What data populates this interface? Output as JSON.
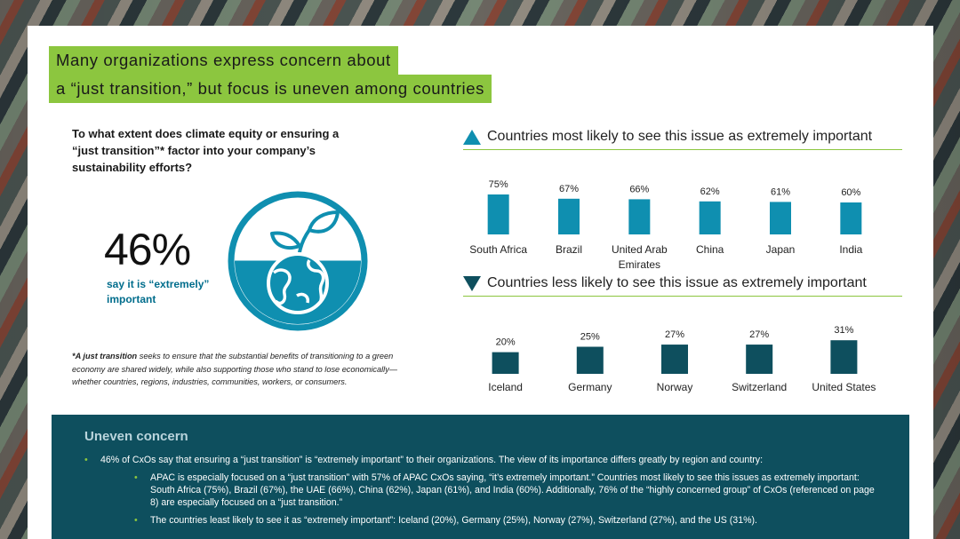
{
  "title": {
    "line1": "Many organizations express concern about",
    "line2": "a “just transition,” but focus is uneven among countries"
  },
  "question": "To what extent does climate equity or ensuring a “just transition”* factor into your company’s sustainability efforts?",
  "headline_stat": {
    "value": "46%",
    "label": "say it is “extremely” important"
  },
  "icon": "globe-plant-icon",
  "footnote": {
    "lead": "*A just transition",
    "text": " seeks to ensure that the substantial benefits of transitioning to a green economy are shared widely, while also supporting those who stand to lose economically—whether countries, regions, industries, communities, workers, or consumers."
  },
  "colors": {
    "accent_green": "#8cc63f",
    "teal_light": "#0f8fb0",
    "teal_dark": "#0e4f5e"
  },
  "chart_data": [
    {
      "type": "bar",
      "title": "Countries most likely to see this issue as extremely important",
      "marker": "up-triangle-icon",
      "categories": [
        "South Africa",
        "Brazil",
        "United Arab Emirates",
        "China",
        "Japan",
        "India"
      ],
      "category_lines": [
        [
          "South Africa"
        ],
        [
          "Brazil"
        ],
        [
          "United Arab",
          "Emirates"
        ],
        [
          "China"
        ],
        [
          "Japan"
        ],
        [
          "India"
        ]
      ],
      "values": [
        75,
        67,
        66,
        62,
        61,
        60
      ],
      "value_labels": [
        "75%",
        "67%",
        "66%",
        "62%",
        "61%",
        "60%"
      ],
      "ylim": [
        0,
        100
      ],
      "grid": false,
      "color": "#0f8fb0"
    },
    {
      "type": "bar",
      "title": "Countries less likely to see this issue as extremely important",
      "marker": "down-triangle-icon",
      "categories": [
        "Iceland",
        "Germany",
        "Norway",
        "Switzerland",
        "United States"
      ],
      "category_lines": [
        [
          "Iceland"
        ],
        [
          "Germany"
        ],
        [
          "Norway"
        ],
        [
          "Switzerland"
        ],
        [
          "United States"
        ]
      ],
      "values": [
        20,
        25,
        27,
        27,
        31
      ],
      "value_labels": [
        "20%",
        "25%",
        "27%",
        "27%",
        "31%"
      ],
      "ylim": [
        0,
        100
      ],
      "grid": false,
      "color": "#0e4f5e"
    }
  ],
  "summary": {
    "title": "Uneven concern",
    "bullet": "46% of CxOs say that ensuring a “just transition” is “extremely important” to their organizations. The view of its importance differs greatly by region and country:",
    "sub_bullets": [
      "APAC is especially focused on a “just transition” with 57% of APAC CxOs saying, “it’s extremely important.” Countries most likely to see this issues as extremely important:  South Africa (75%), Brazil (67%), the UAE (66%), China (62%), Japan (61%), and India (60%). Additionally, 76% of the “highly concerned group” of CxOs (referenced on page 8) are especially focused on a “just transition.”",
      "The countries least likely to see it as “extremely important”: Iceland (20%), Germany (25%), Norway (27%), Switzerland (27%), and the US (31%)."
    ]
  }
}
